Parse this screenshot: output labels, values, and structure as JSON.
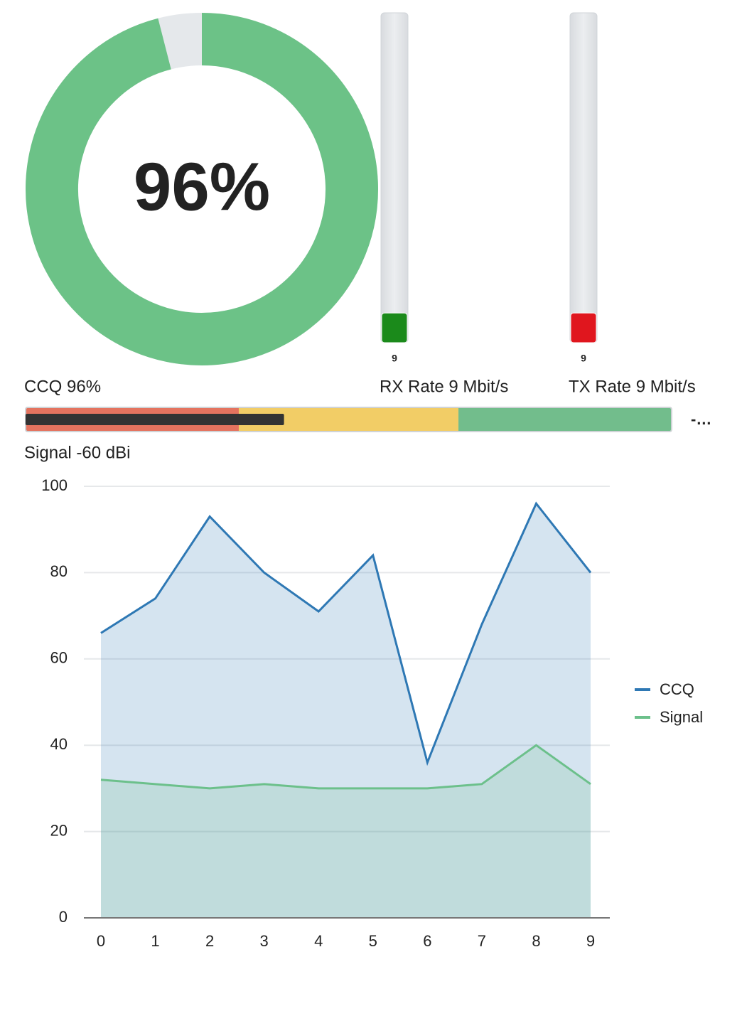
{
  "chart_data": [
    {
      "type": "donut",
      "label": "CCQ 96%",
      "values": [
        96
      ],
      "value_labels": [
        "96%"
      ],
      "range": [
        0,
        100
      ],
      "color": "#6cc287",
      "track_color": "#e5e8eb"
    },
    {
      "type": "gauge",
      "label": "RX Rate 9 Mbit/s",
      "values": [
        9
      ],
      "ylim": [
        0,
        100
      ],
      "color": "#1b8a1b"
    },
    {
      "type": "gauge",
      "label": "TX Rate 9 Mbit/s",
      "values": [
        9
      ],
      "ylim": [
        0,
        100
      ],
      "color": "#e0161e"
    },
    {
      "type": "bullet",
      "label": "Signal -60 dBi",
      "values": [
        -60
      ],
      "xlim": [
        -100,
        0
      ],
      "color": "#333333",
      "bands": [
        {
          "to": -67,
          "color": "#e4735f"
        },
        {
          "to": -33,
          "color": "#f2cd66"
        },
        {
          "to": 0,
          "color": "#72bd8c"
        }
      ]
    },
    {
      "type": "area",
      "x": [
        0,
        1,
        2,
        3,
        4,
        5,
        6,
        7,
        8,
        9
      ],
      "xlim": [
        0,
        9
      ],
      "series": [
        {
          "name": "CCQ",
          "color": "#2e78b4",
          "values": [
            66,
            74,
            93,
            80,
            71,
            84,
            36,
            68,
            96,
            80
          ]
        },
        {
          "name": "Signal",
          "color": "#6cc08b",
          "values": [
            32,
            31,
            30,
            31,
            30,
            30,
            30,
            31,
            40,
            31
          ]
        }
      ],
      "ylim": [
        0,
        100
      ],
      "yticks": [
        0,
        20,
        40,
        60,
        80,
        100
      ],
      "grid": true,
      "legend": "right"
    }
  ]
}
